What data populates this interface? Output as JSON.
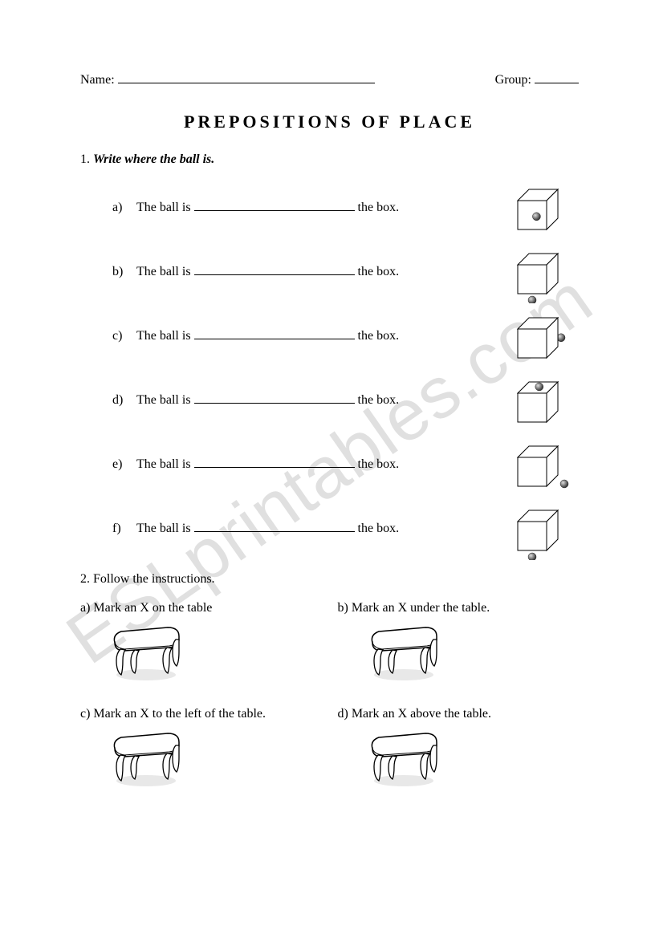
{
  "header": {
    "name_label": "Name:",
    "group_label": "Group:"
  },
  "title": "PREPOSITIONS OF PLACE",
  "section1": {
    "number": "1.",
    "instruction": "Write where the ball is.",
    "items": [
      {
        "letter": "a)",
        "prefix": "The ball is",
        "suffix": "the box.",
        "ball_pos": "inside"
      },
      {
        "letter": "b)",
        "prefix": "The ball is",
        "suffix": "the box.",
        "ball_pos": "front"
      },
      {
        "letter": "c)",
        "prefix": "The ball is",
        "suffix": "the box.",
        "ball_pos": "behind"
      },
      {
        "letter": "d)",
        "prefix": "The ball is",
        "suffix": "the box.",
        "ball_pos": "on"
      },
      {
        "letter": "e)",
        "prefix": "The ball is",
        "suffix": "the box.",
        "ball_pos": "next"
      },
      {
        "letter": "f)",
        "prefix": "The ball is",
        "suffix": "the box.",
        "ball_pos": "under"
      }
    ]
  },
  "section2": {
    "label": "2. Follow the instructions.",
    "items": [
      {
        "text": "a) Mark an X on the table"
      },
      {
        "text": "b) Mark an X under the table."
      },
      {
        "text": "c) Mark an X to the left of the table."
      },
      {
        "text": "d) Mark an X above the table."
      }
    ]
  },
  "watermark": "ESLprintables.com",
  "colors": {
    "text": "#000000",
    "background": "#ffffff",
    "cube_stroke": "#000000",
    "cube_fill": "#ffffff",
    "ball_fill": "#555555",
    "ball_highlight": "#cccccc",
    "watermark": "rgba(0,0,0,0.12)"
  }
}
